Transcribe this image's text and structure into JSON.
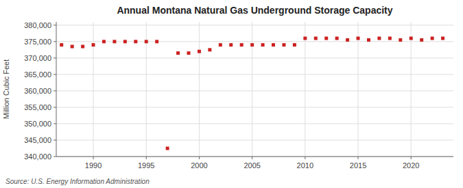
{
  "chart_data": {
    "type": "scatter",
    "title": "Annual Montana Natural Gas Underground Storage Capacity",
    "y_label": "Million Cubic Feet",
    "annotations": [
      "Source: U.S. Energy Information Administration"
    ],
    "x": [
      1987,
      1988,
      1989,
      1990,
      1991,
      1992,
      1993,
      1994,
      1995,
      1996,
      1997,
      1998,
      1999,
      2000,
      2001,
      2002,
      2003,
      2004,
      2005,
      2006,
      2007,
      2008,
      2009,
      2010,
      2011,
      2012,
      2013,
      2014,
      2015,
      2016,
      2017,
      2018,
      2019,
      2020,
      2021,
      2022,
      2023
    ],
    "values": [
      374000,
      373500,
      373500,
      374000,
      375000,
      375000,
      375000,
      375000,
      375000,
      375000,
      342500,
      371500,
      371500,
      372000,
      372500,
      374000,
      374000,
      374000,
      374000,
      374000,
      374000,
      374000,
      374000,
      376000,
      376000,
      376000,
      376000,
      375500,
      376000,
      375500,
      376000,
      376000,
      375500,
      376000,
      375500,
      376000,
      376000
    ],
    "color": "#cc2222",
    "marker": "square",
    "grid": true,
    "xlim": [
      1986.5,
      2024
    ],
    "xticks": [
      1990,
      1995,
      2000,
      2005,
      2010,
      2015,
      2020
    ],
    "ylim": [
      340000,
      381000
    ],
    "yticks": [
      {
        "value": 340000,
        "label": "340,000"
      },
      {
        "value": 345000,
        "label": "345,000"
      },
      {
        "value": 350000,
        "label": "350,000"
      },
      {
        "value": 355000,
        "label": "355,000"
      },
      {
        "value": 360000,
        "label": "360,000"
      },
      {
        "value": 365000,
        "label": "365,000"
      },
      {
        "value": 370000,
        "label": "370,000"
      },
      {
        "value": 375000,
        "label": "375,000"
      },
      {
        "value": 380000,
        "label": "380,000"
      }
    ]
  }
}
